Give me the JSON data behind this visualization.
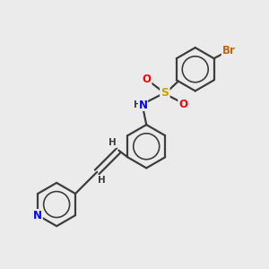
{
  "background_color": "#ebebeb",
  "bond_color": "#3d3d3d",
  "N_color": "#0000ff",
  "O_color": "#ff0000",
  "S_color": "#c8a000",
  "Br_color": "#c86400",
  "line_width": 1.6,
  "figsize": [
    3.0,
    3.0
  ],
  "dpi": 100,
  "xlim": [
    0,
    10
  ],
  "ylim": [
    0,
    10
  ]
}
